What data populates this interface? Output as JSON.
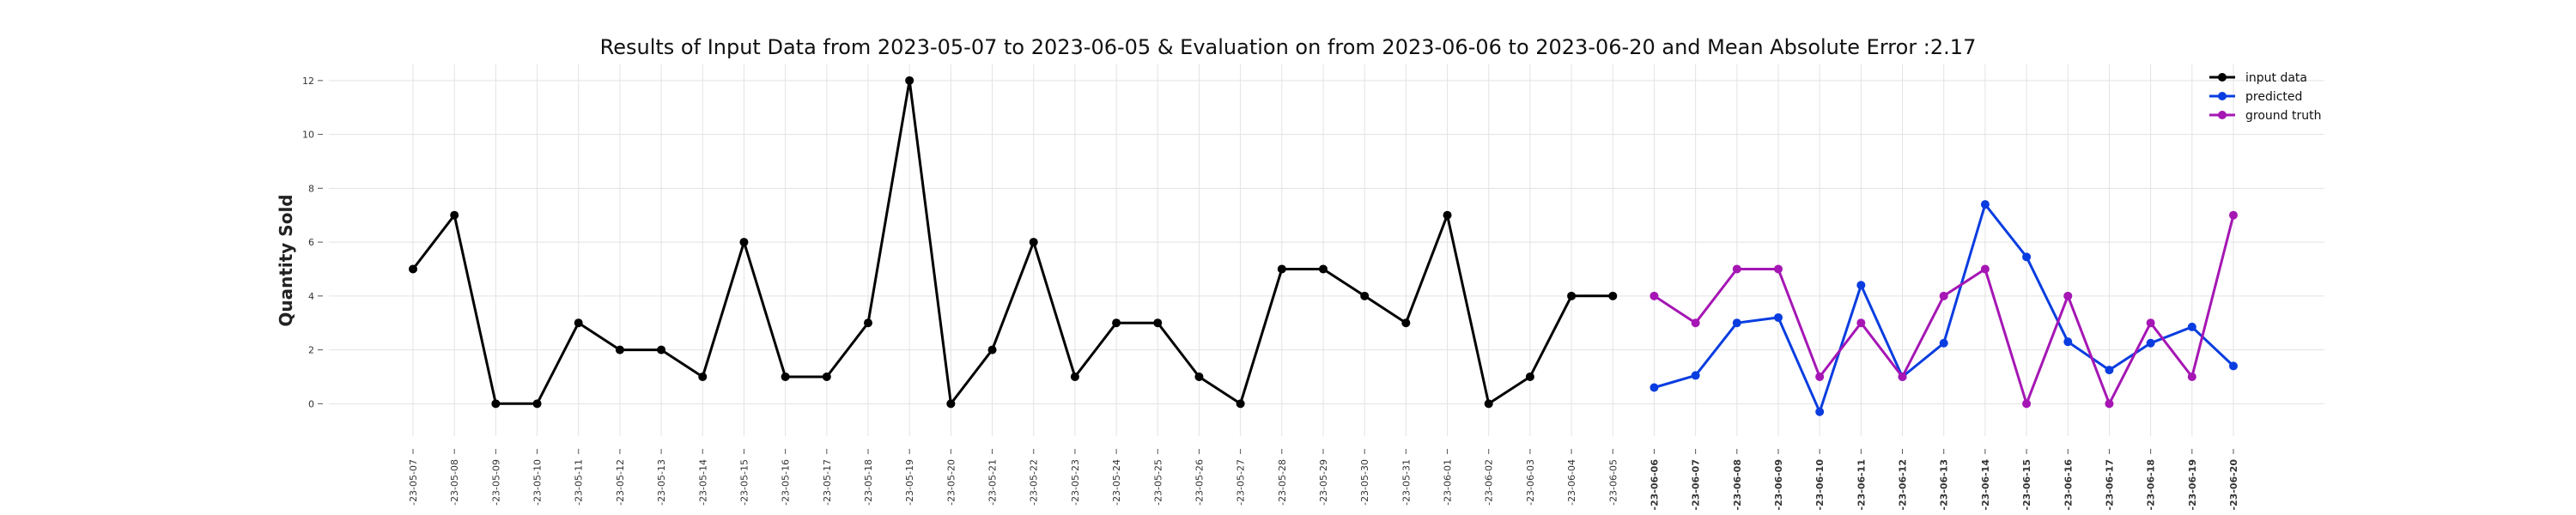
{
  "chart_data": {
    "type": "line",
    "title": "Results of Input Data from 2023-05-07 to 2023-06-05 & Evaluation on from 2023-06-06 to 2023-06-20 and Mean Absolute Error  :2.17",
    "xlabel": "",
    "ylabel": "Quantity Sold",
    "ylim": [
      -1.2,
      12.6
    ],
    "yticks": [
      0,
      2,
      4,
      6,
      8,
      10,
      12
    ],
    "grid": true,
    "legend_position": "top-right",
    "x": [
      "2023-05-07",
      "2023-05-08",
      "2023-05-09",
      "2023-05-10",
      "2023-05-11",
      "2023-05-12",
      "2023-05-13",
      "2023-05-14",
      "2023-05-15",
      "2023-05-16",
      "2023-05-17",
      "2023-05-18",
      "2023-05-19",
      "2023-05-20",
      "2023-05-21",
      "2023-05-22",
      "2023-05-23",
      "2023-05-24",
      "2023-05-25",
      "2023-05-26",
      "2023-05-27",
      "2023-05-28",
      "2023-05-29",
      "2023-05-30",
      "2023-05-31",
      "2023-06-01",
      "2023-06-02",
      "2023-06-03",
      "2023-06-04",
      "2023-06-05",
      "2023-06-06",
      "2023-06-07",
      "2023-06-08",
      "2023-06-09",
      "2023-06-10",
      "2023-06-11",
      "2023-06-12",
      "2023-06-13",
      "2023-06-14",
      "2023-06-15",
      "2023-06-16",
      "2023-06-17",
      "2023-06-18",
      "2023-06-19",
      "2023-06-20"
    ],
    "xtick_labels": [
      "-23-05-07",
      "-23-05-08",
      "-23-05-09",
      "-23-05-10",
      "-23-05-11",
      "-23-05-12",
      "-23-05-13",
      "-23-05-14",
      "-23-05-15",
      "-23-05-16",
      "-23-05-17",
      "-23-05-18",
      "-23-05-19",
      "-23-05-20",
      "-23-05-21",
      "-23-05-22",
      "-23-05-23",
      "-23-05-24",
      "-23-05-25",
      "-23-05-26",
      "-23-05-27",
      "-23-05-28",
      "-23-05-29",
      "-23-05-30",
      "-23-05-31",
      "-23-06-01",
      "-23-06-02",
      "-23-06-03",
      "-23-06-04",
      "-23-06-05",
      "-23-06-06",
      "-23-06-07",
      "-23-06-08",
      "-23-06-09",
      "-23-06-10",
      "-23-06-11",
      "-23-06-12",
      "-23-06-13",
      "-23-06-14",
      "-23-06-15",
      "-23-06-16",
      "-23-06-17",
      "-23-06-18",
      "-23-06-19",
      "-23-06-20"
    ],
    "series": [
      {
        "name": "input data",
        "color": "#000000",
        "x": [
          "2023-05-07",
          "2023-05-08",
          "2023-05-09",
          "2023-05-10",
          "2023-05-11",
          "2023-05-12",
          "2023-05-13",
          "2023-05-14",
          "2023-05-15",
          "2023-05-16",
          "2023-05-17",
          "2023-05-18",
          "2023-05-19",
          "2023-05-20",
          "2023-05-21",
          "2023-05-22",
          "2023-05-23",
          "2023-05-24",
          "2023-05-25",
          "2023-05-26",
          "2023-05-27",
          "2023-05-28",
          "2023-05-29",
          "2023-05-30",
          "2023-05-31",
          "2023-06-01",
          "2023-06-02",
          "2023-06-03",
          "2023-06-04",
          "2023-06-05"
        ],
        "values": [
          5,
          7,
          0,
          0,
          3,
          2,
          2,
          1,
          6,
          1,
          1,
          3,
          12,
          0,
          2,
          6,
          1,
          3,
          3,
          1,
          0,
          5,
          5,
          4,
          3,
          7,
          0,
          1,
          4,
          4
        ]
      },
      {
        "name": "predicted",
        "color": "#0a3de0",
        "x": [
          "2023-06-06",
          "2023-06-07",
          "2023-06-08",
          "2023-06-09",
          "2023-06-10",
          "2023-06-11",
          "2023-06-12",
          "2023-06-13",
          "2023-06-14",
          "2023-06-15",
          "2023-06-16",
          "2023-06-17",
          "2023-06-18",
          "2023-06-19",
          "2023-06-20"
        ],
        "values": [
          0.6,
          1.05,
          3.0,
          3.2,
          -0.3,
          4.4,
          1.0,
          2.25,
          7.4,
          5.45,
          2.3,
          1.25,
          2.25,
          2.85,
          1.4
        ]
      },
      {
        "name": "ground truth",
        "color": "#a516b4",
        "x": [
          "2023-06-06",
          "2023-06-07",
          "2023-06-08",
          "2023-06-09",
          "2023-06-10",
          "2023-06-11",
          "2023-06-12",
          "2023-06-13",
          "2023-06-14",
          "2023-06-15",
          "2023-06-16",
          "2023-06-17",
          "2023-06-18",
          "2023-06-19",
          "2023-06-20"
        ],
        "values": [
          4,
          3,
          5,
          5,
          1,
          3,
          1,
          4,
          5,
          0,
          4,
          0,
          3,
          1,
          7
        ]
      }
    ]
  }
}
